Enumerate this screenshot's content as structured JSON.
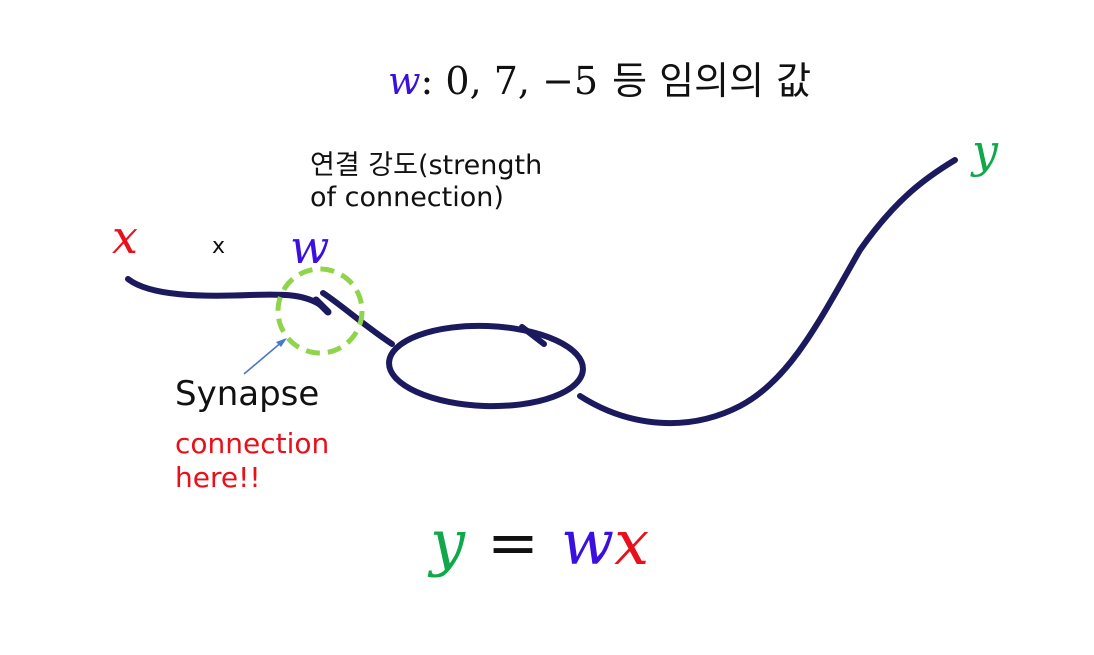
{
  "title": {
    "var": "w",
    "text": ": 0, 7, −5",
    "korean": "등 임의의 값"
  },
  "labels": {
    "strength": "연결 강도(strength\nof connection)",
    "x_var": "x",
    "x_mark": "x",
    "w_var": "w",
    "y_var": "y",
    "synapse": "Synapse",
    "connection_note": "connection\nhere!!"
  },
  "equation": {
    "y": "y",
    "op": "=",
    "w": "w",
    "x": "x"
  },
  "colors": {
    "x": "#e8101a",
    "w": "#3a10e0",
    "y": "#10a84a",
    "curve": "#1c1a5e",
    "synapse_circle": "#8fd44a",
    "arrow": "#4a78c8"
  }
}
